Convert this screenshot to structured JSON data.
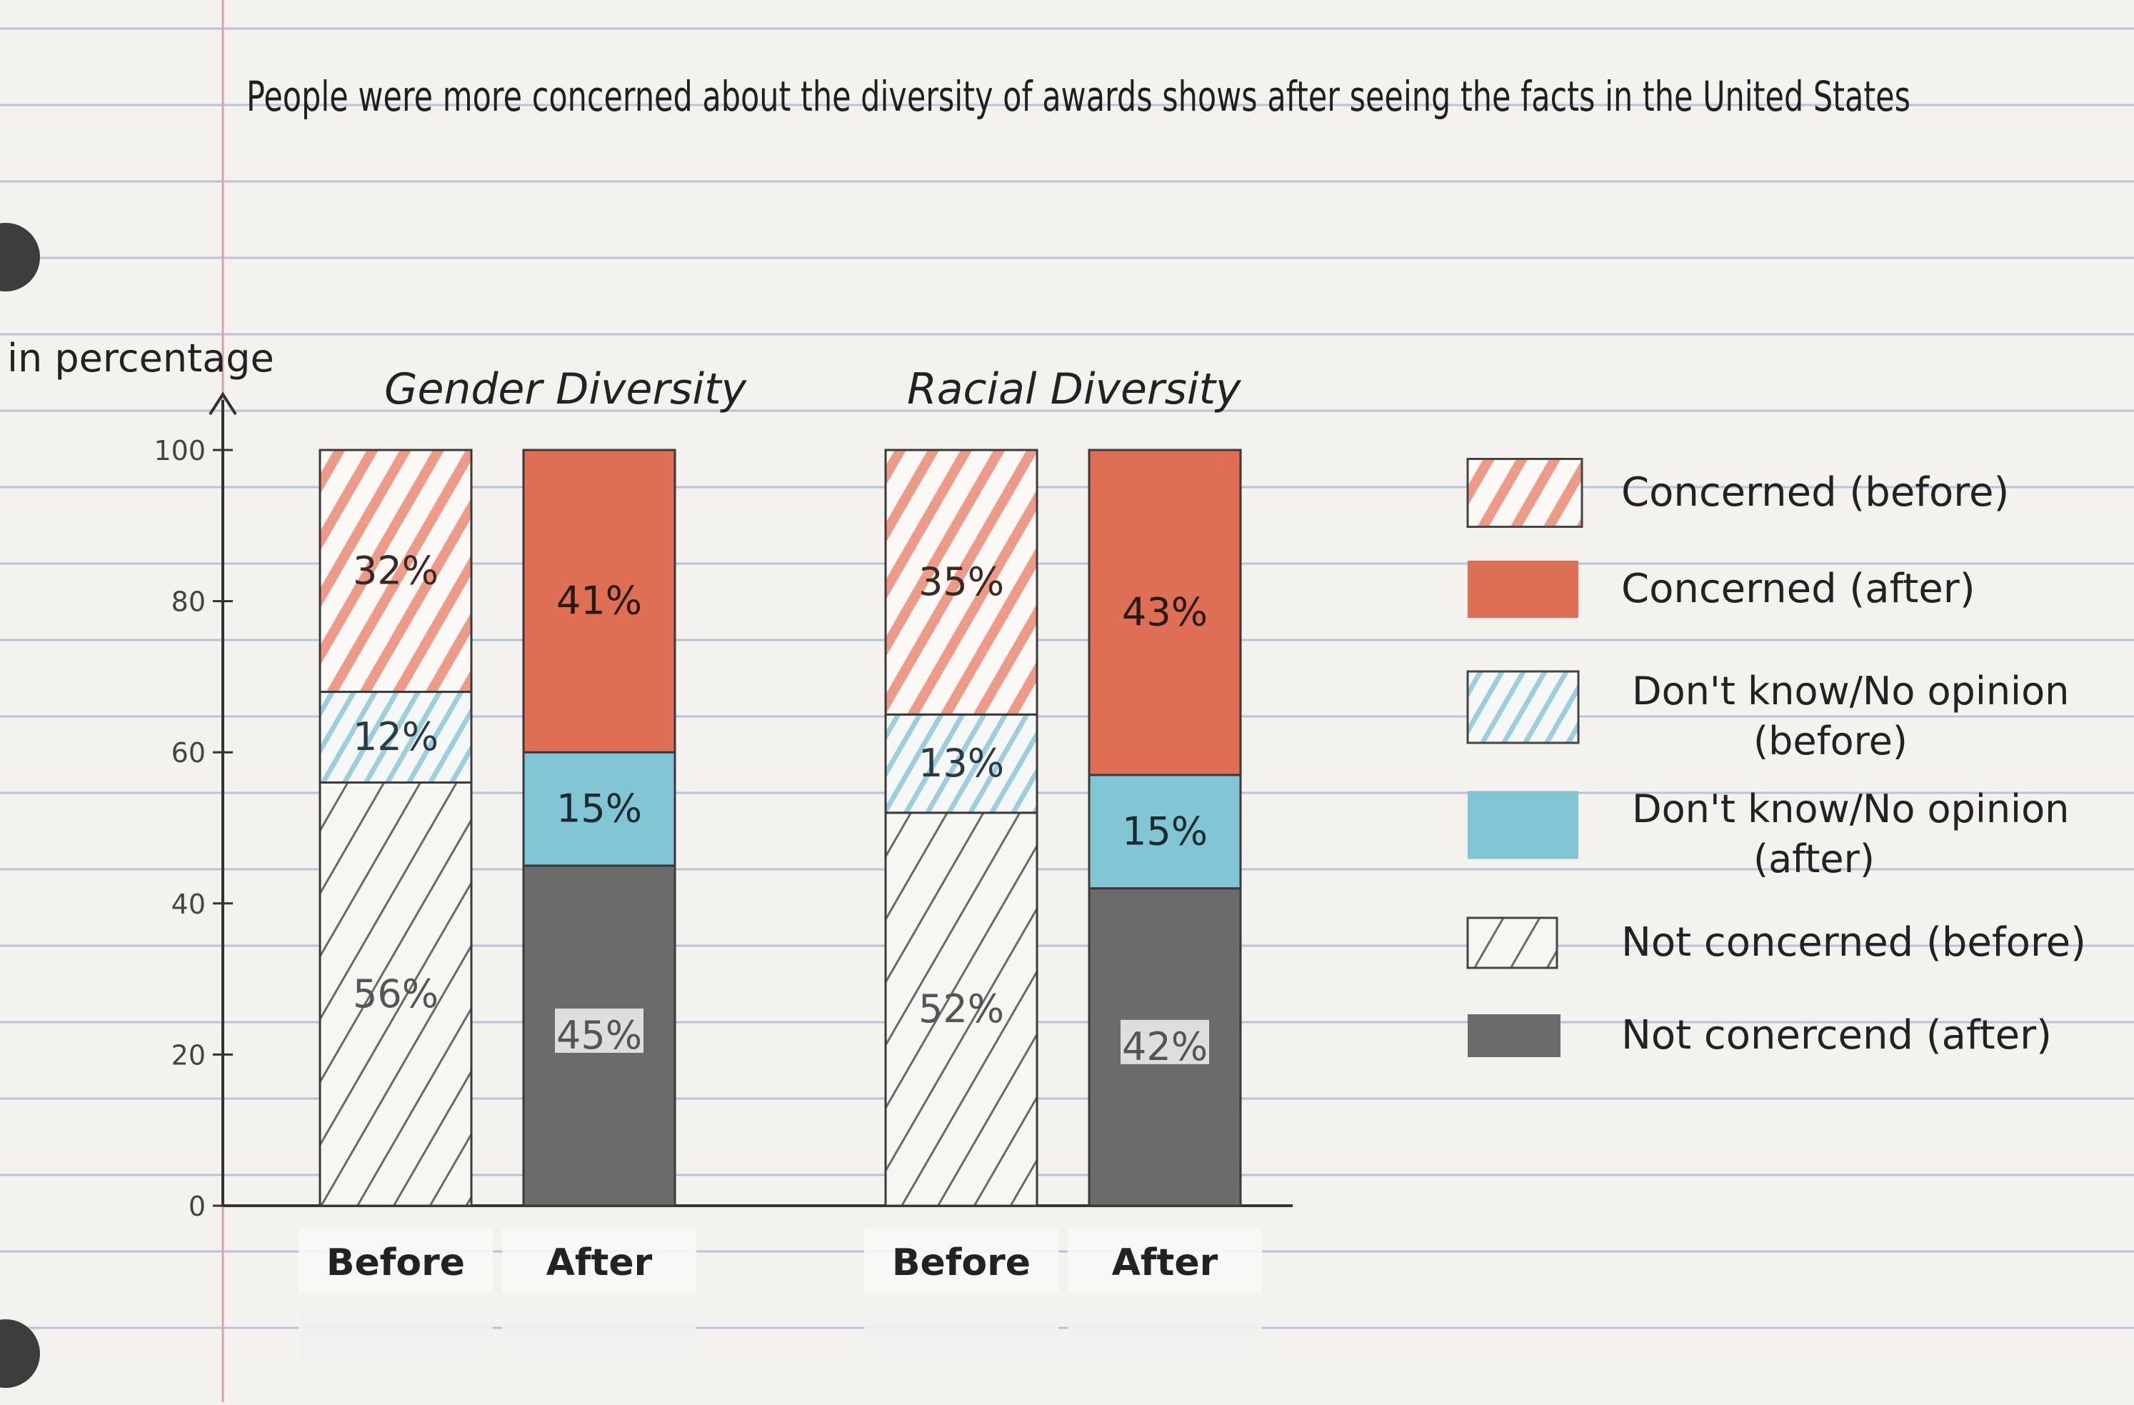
{
  "chart_data": {
    "type": "bar",
    "stacked": true,
    "title": "People were more concerned about the diversity of awards shows after seeing the facts in the United States",
    "ylabel": "in percentage",
    "ylim": [
      0,
      100
    ],
    "yticks": [
      0,
      20,
      40,
      60,
      80,
      100
    ],
    "groups": [
      {
        "title": "Gender Diversity",
        "bars": [
          {
            "label": "Before",
            "segments": [
              {
                "series": "Not concerned (before)",
                "value": 56,
                "label": "56%"
              },
              {
                "series": "Don't know/No opinion (before)",
                "value": 12,
                "label": "12%"
              },
              {
                "series": "Concerned (before)",
                "value": 32,
                "label": "32%"
              }
            ]
          },
          {
            "label": "After",
            "segments": [
              {
                "series": "Not conercend (after)",
                "value": 45,
                "label": "45%"
              },
              {
                "series": "Don't know/No opinion (after)",
                "value": 15,
                "label": "15%"
              },
              {
                "series": "Concerned (after)",
                "value": 41,
                "label": "41%"
              }
            ]
          }
        ]
      },
      {
        "title": "Racial Diversity",
        "bars": [
          {
            "label": "Before",
            "segments": [
              {
                "series": "Not concerned (before)",
                "value": 52,
                "label": "52%"
              },
              {
                "series": "Don't know/No opinion (before)",
                "value": 13,
                "label": "13%"
              },
              {
                "series": "Concerned (before)",
                "value": 35,
                "label": "35%"
              }
            ]
          },
          {
            "label": "After",
            "segments": [
              {
                "series": "Not conercend (after)",
                "value": 42,
                "label": "42%"
              },
              {
                "series": "Don't know/No opinion (after)",
                "value": 15,
                "label": "15%"
              },
              {
                "series": "Concerned (after)",
                "value": 43,
                "label": "43%"
              }
            ]
          }
        ]
      }
    ],
    "legend": {
      "position": "right",
      "items": [
        {
          "name": "Concerned (before)",
          "style": "hatched",
          "color": "#e8826b"
        },
        {
          "name": "Concerned (after)",
          "style": "solid",
          "color": "#de6f55"
        },
        {
          "name": "Don't know/No opinion (before)",
          "style": "hatched",
          "color": "#7fc4d6"
        },
        {
          "name": "Don't know/No opinion (after)",
          "style": "solid",
          "color": "#82c6d6"
        },
        {
          "name": "Not concerned (before)",
          "style": "hatched",
          "color": "#6a6a6a"
        },
        {
          "name": "Not conercend (after)",
          "style": "solid",
          "color": "#6b6b6b"
        }
      ]
    },
    "grid": false
  }
}
